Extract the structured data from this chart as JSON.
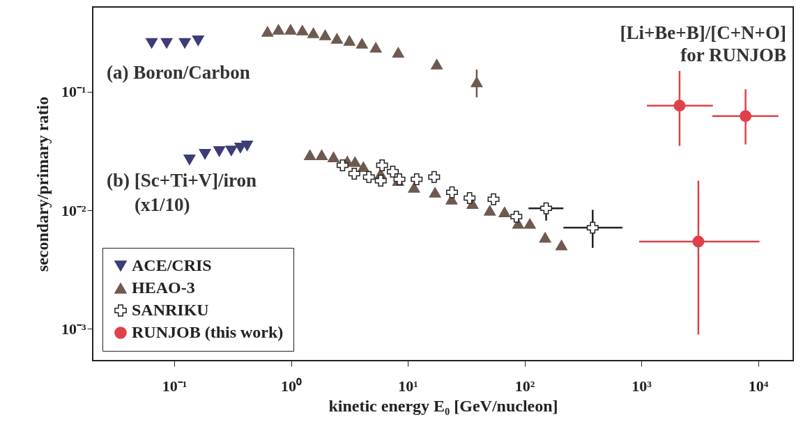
{
  "chart_data": {
    "type": "scatter",
    "xlabel": "kinetic energy E₀ [GeV/nucleon]",
    "ylabel": "secondary/primary ratio",
    "log": "xy",
    "xlim": [
      0.02,
      20000
    ],
    "ylim": [
      0.00054,
      0.52
    ],
    "xticks": [
      {
        "value": 0.1,
        "label": "10⁻¹"
      },
      {
        "value": 1,
        "label": "10⁰"
      },
      {
        "value": 10,
        "label": "10¹"
      },
      {
        "value": 100,
        "label": "10²"
      },
      {
        "value": 1000,
        "label": "10³"
      },
      {
        "value": 10000,
        "label": "10⁴"
      }
    ],
    "yticks": [
      {
        "value": 0.001,
        "label": "10⁻³"
      },
      {
        "value": 0.01,
        "label": "10⁻²"
      },
      {
        "value": 0.1,
        "label": "10⁻¹"
      }
    ],
    "grid": false,
    "legend": "bottom left",
    "annotations": [
      "(a) Boron/Carbon",
      "(b) [Sc+Ti+V]/iron",
      "(x1/10)",
      "[Li+Be+B]/[C+N+O]",
      "for RUNJOB"
    ],
    "series": [
      {
        "name": "ACE/CRIS",
        "color": "#3c3c78",
        "marker": "triangle-down",
        "x": [
          0.064,
          0.086,
          0.123,
          0.16,
          0.135,
          0.183,
          0.243,
          0.308,
          0.368,
          0.42
        ],
        "values": [
          0.257,
          0.257,
          0.257,
          0.27,
          0.0267,
          0.0298,
          0.0314,
          0.0318,
          0.0336,
          0.035
        ]
      },
      {
        "name": "HEAO-3",
        "color": "#6e5a50",
        "marker": "triangle",
        "x": [
          0.628,
          0.78,
          0.99,
          1.25,
          1.55,
          1.96,
          2.47,
          3.16,
          4.05,
          5.32,
          8.27,
          17.7,
          38.9,
          1.45,
          1.83,
          2.31,
          3.03,
          3.53,
          4.16,
          5.85,
          8.27,
          11.3,
          17.1,
          23.7,
          35.8,
          50.4,
          67.4,
          88.2,
          111,
          150,
          207
        ],
        "values": [
          0.323,
          0.336,
          0.336,
          0.331,
          0.314,
          0.302,
          0.282,
          0.271,
          0.256,
          0.237,
          0.215,
          0.171,
          0.121,
          0.0294,
          0.0294,
          0.0282,
          0.026,
          0.0257,
          0.0233,
          0.0204,
          0.0178,
          0.0156,
          0.0142,
          0.0124,
          0.0114,
          0.01,
          0.0097,
          0.00774,
          0.00774,
          0.00592,
          0.0051
        ],
        "errors": [
          null,
          null,
          null,
          null,
          null,
          null,
          null,
          null,
          null,
          null,
          null,
          null,
          [
            0.0898,
            0.154
          ],
          null,
          null,
          null,
          null,
          null,
          null,
          null,
          null,
          null,
          null,
          null,
          null,
          null,
          null,
          null,
          null,
          null,
          null
        ]
      },
      {
        "name": "SANRIKU",
        "color": "#222222",
        "marker": "cross",
        "x": [
          2.76,
          3.48,
          4.64,
          6.02,
          5.86,
          7.43,
          8.48,
          11.9,
          16.8,
          23.9,
          33.8,
          54.2,
          85.0,
          153,
          383
        ],
        "values": [
          0.024,
          0.0204,
          0.0191,
          0.024,
          0.0178,
          0.0212,
          0.0183,
          0.0183,
          0.0191,
          0.0142,
          0.0127,
          0.0124,
          0.00885,
          0.0104,
          0.00714
        ],
        "errors": [
          null,
          null,
          null,
          null,
          null,
          null,
          null,
          null,
          null,
          null,
          null,
          null,
          null,
          [
            0.0082,
            0.0104
          ],
          [
            0.00483,
            0.0101
          ]
        ],
        "xerrors": [
          null,
          null,
          null,
          null,
          null,
          null,
          null,
          null,
          null,
          null,
          null,
          null,
          null,
          [
            108,
            215
          ],
          [
            215,
            689
          ]
        ]
      },
      {
        "name": "RUNJOB (this work)",
        "color": "#e0404a",
        "marker": "circle",
        "x": [
          2125,
          7810,
          3080
        ],
        "values": [
          0.0764,
          0.0624,
          0.00546
        ],
        "errors": [
          [
            0.035,
            0.15
          ],
          [
            0.036,
            0.105
          ],
          [
            0.000897,
            0.0178
          ]
        ],
        "xerrors": [
          [
            1116,
            4100
          ],
          [
            4050,
            14900
          ],
          [
            960,
            10280
          ]
        ]
      }
    ]
  }
}
